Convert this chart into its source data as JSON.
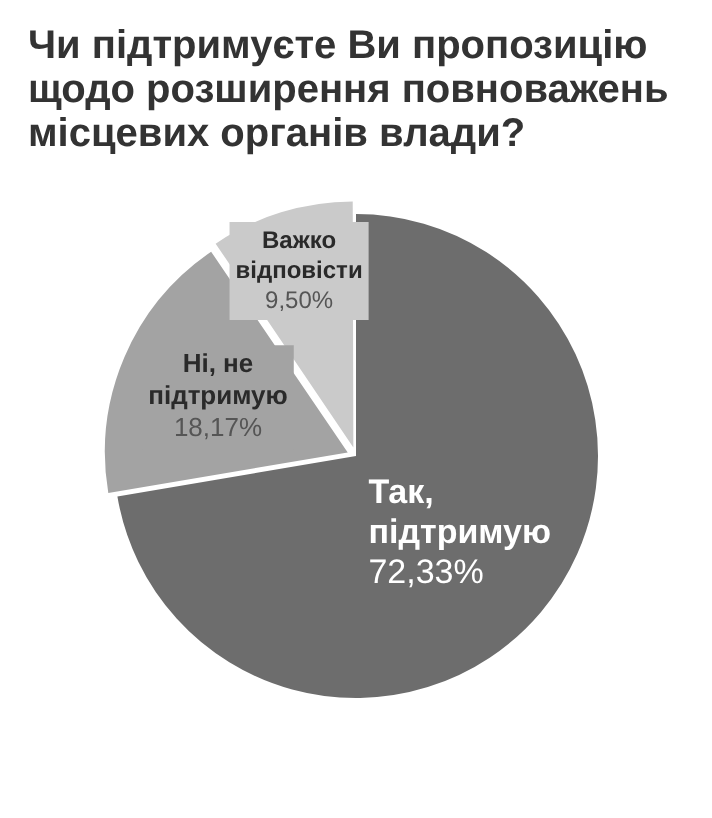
{
  "chart_data": {
    "type": "pie",
    "title": "Чи підтримуєте Ви пропозицію щодо розширення повноважень місцевих органів влади?",
    "categories": [
      "Так, підтримую",
      "Ні, не підтримую",
      "Важко відповісти"
    ],
    "values": [
      72.33,
      18.17,
      9.5
    ],
    "value_labels": [
      "72,33%",
      "18,17%",
      "9,50%"
    ],
    "colors": [
      "#6d6d6d",
      "#a3a3a3",
      "#cacaca"
    ],
    "legend": false
  }
}
